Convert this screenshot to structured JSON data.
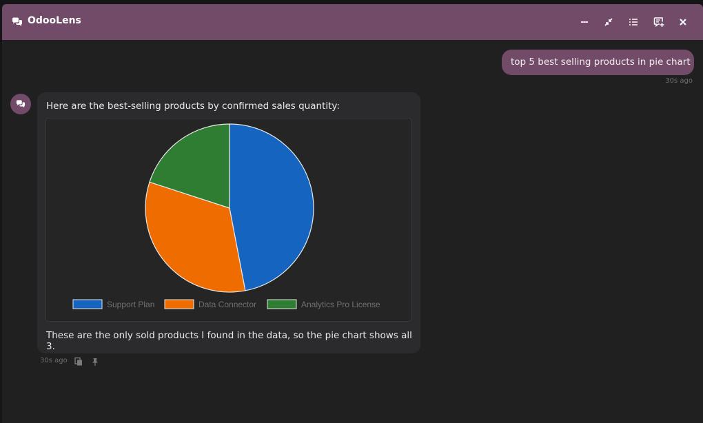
{
  "window": {
    "title": "OdooLens",
    "accent_color": "#714b67",
    "controls": [
      "minimize-icon",
      "collapse-icon",
      "list-icon",
      "new-chat-icon",
      "close-icon"
    ]
  },
  "messages": {
    "user": {
      "text": "top 5 best selling products in pie chart",
      "time": "30s ago"
    },
    "bot": {
      "intro": "Here are the best-selling products by confirmed sales quantity:",
      "outro": "These are the only sold products I found in the data, so the pie chart shows all 3.",
      "time": "30s ago",
      "actions": [
        "copy-icon",
        "pin-icon"
      ]
    }
  },
  "chart_data": {
    "type": "pie",
    "categories": [
      "Support Plan",
      "Data Connector",
      "Analytics Pro License"
    ],
    "values": [
      47,
      33,
      20
    ],
    "colors": [
      "#1565c0",
      "#ef6c00",
      "#2e7d32"
    ],
    "legend": "bottom"
  }
}
